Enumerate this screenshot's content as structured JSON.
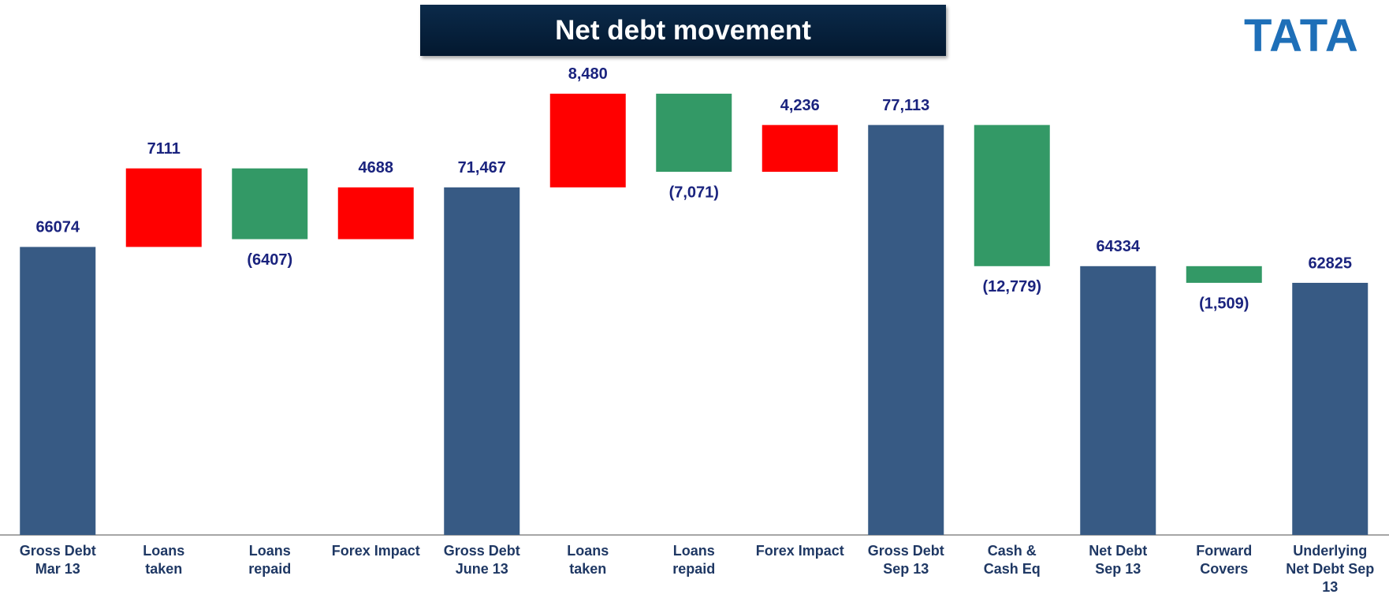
{
  "chart_data": {
    "type": "waterfall",
    "title": "Net debt movement",
    "logo": "TATA",
    "categories": [
      "Gross Debt\nMar 13",
      "Loans\ntaken",
      "Loans\nrepaid",
      "Forex Impact",
      "Gross Debt\nJune 13",
      "Loans\ntaken",
      "Loans\nrepaid",
      "Forex Impact",
      "Gross Debt\nSep 13",
      "Cash &\nCash Eq",
      "Net Debt\nSep 13",
      "Forward\nCovers",
      "Underlying\nNet Debt Sep\n13"
    ],
    "values": [
      66074,
      7111,
      -6407,
      4688,
      71467,
      8480,
      -7071,
      4236,
      77113,
      -12779,
      64334,
      -1509,
      62825
    ],
    "value_labels": [
      "66074",
      "7111",
      "(6407)",
      "4688",
      "71,467",
      "8,480",
      "(7,071)",
      "4,236",
      "77,113",
      "(12,779)",
      "64334",
      "(1,509)",
      "62825"
    ],
    "colors": [
      "#375a84",
      "#ff0000",
      "#339966",
      "#ff0000",
      "#375a84",
      "#ff0000",
      "#339966",
      "#ff0000",
      "#375a84",
      "#339966",
      "#375a84",
      "#339966",
      "#375a84"
    ],
    "total_color": "#375a84",
    "ylim": [
      40000,
      88000
    ]
  }
}
